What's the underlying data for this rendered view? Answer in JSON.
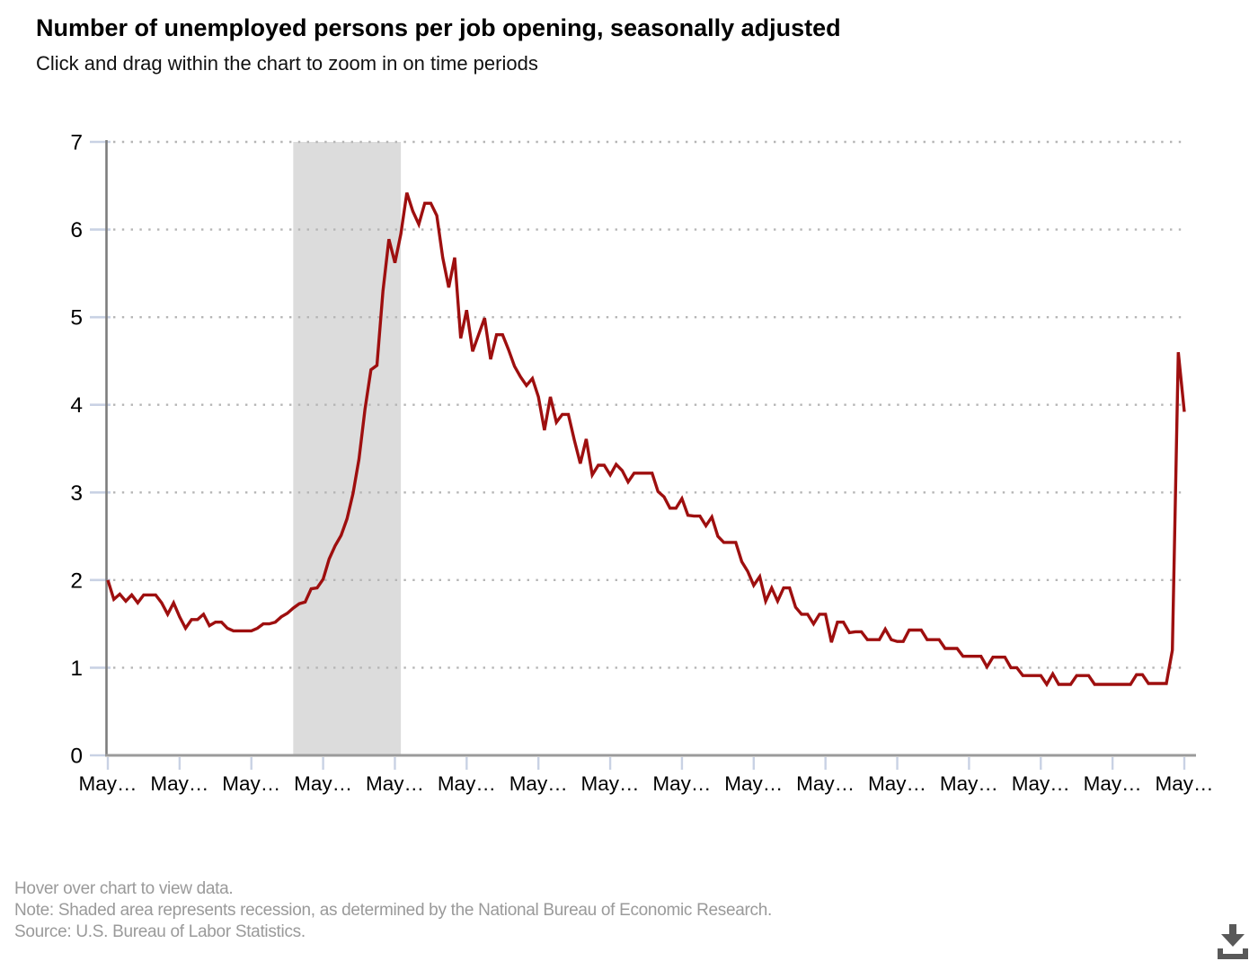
{
  "header": {
    "title": "Number of unemployed persons per job opening, seasonally adjusted",
    "subtitle": "Click and drag within the chart to zoom in on time periods"
  },
  "chart_data": {
    "type": "line",
    "title": "Number of unemployed persons per job opening, seasonally adjusted",
    "xlabel": "",
    "ylabel": "",
    "ylim": [
      0,
      7
    ],
    "y_ticks": [
      0,
      1,
      2,
      3,
      4,
      5,
      6,
      7
    ],
    "grid": "dotted-horizontal",
    "legend": "none",
    "x_tick_labels": [
      "May…",
      "May…",
      "May…",
      "May…",
      "May…",
      "May…",
      "May…",
      "May…",
      "May…",
      "May…",
      "May…",
      "May…",
      "May…",
      "May…",
      "May…",
      "May…"
    ],
    "points_per_tick_interval": 12,
    "series": [
      {
        "name": "Unemployed persons per job opening",
        "color": "#9e0f0f",
        "values": [
          2.0,
          1.78,
          1.84,
          1.76,
          1.83,
          1.74,
          1.83,
          1.83,
          1.83,
          1.74,
          1.61,
          1.74,
          1.58,
          1.45,
          1.55,
          1.55,
          1.61,
          1.48,
          1.52,
          1.52,
          1.45,
          1.42,
          1.42,
          1.42,
          1.42,
          1.45,
          1.5,
          1.5,
          1.52,
          1.58,
          1.62,
          1.68,
          1.73,
          1.75,
          1.9,
          1.91,
          2.01,
          2.24,
          2.39,
          2.51,
          2.7,
          2.99,
          3.38,
          3.95,
          4.4,
          4.45,
          5.3,
          5.89,
          5.62,
          5.95,
          6.42,
          6.21,
          6.06,
          6.3,
          6.3,
          6.16,
          5.68,
          5.34,
          5.68,
          4.76,
          5.08,
          4.61,
          4.8,
          4.99,
          4.52,
          4.8,
          4.8,
          4.63,
          4.44,
          4.32,
          4.22,
          4.3,
          4.09,
          3.71,
          4.09,
          3.8,
          3.89,
          3.89,
          3.6,
          3.33,
          3.61,
          3.2,
          3.31,
          3.31,
          3.2,
          3.32,
          3.25,
          3.12,
          3.22,
          3.22,
          3.22,
          3.22,
          3.01,
          2.95,
          2.82,
          2.82,
          2.93,
          2.74,
          2.73,
          2.73,
          2.62,
          2.72,
          2.5,
          2.43,
          2.43,
          2.43,
          2.21,
          2.1,
          1.94,
          2.04,
          1.76,
          1.91,
          1.76,
          1.91,
          1.91,
          1.69,
          1.61,
          1.61,
          1.5,
          1.61,
          1.61,
          1.29,
          1.52,
          1.52,
          1.4,
          1.41,
          1.41,
          1.32,
          1.32,
          1.32,
          1.44,
          1.32,
          1.3,
          1.3,
          1.43,
          1.43,
          1.43,
          1.32,
          1.32,
          1.32,
          1.22,
          1.22,
          1.22,
          1.13,
          1.13,
          1.13,
          1.13,
          1.01,
          1.12,
          1.12,
          1.12,
          1.0,
          1.0,
          0.91,
          0.91,
          0.91,
          0.91,
          0.81,
          0.93,
          0.81,
          0.81,
          0.81,
          0.91,
          0.91,
          0.91,
          0.81,
          0.81,
          0.81,
          0.81,
          0.81,
          0.81,
          0.81,
          0.92,
          0.92,
          0.82,
          0.82,
          0.82,
          0.82,
          1.2,
          4.6,
          3.92
        ]
      }
    ],
    "recession_band": {
      "start_point_index": 31,
      "end_point_index": 49,
      "color": "#dcdcdc"
    },
    "colors": {
      "line": "#9e0f0f",
      "grid_dots": "#b5b5b5",
      "y_axis": "#7d7d7d",
      "x_axis": "#9b9b9b",
      "tick_marks": "#c9d2e4",
      "axis_labels": "#000000"
    }
  },
  "footer": {
    "lines": [
      "Hover over chart to view data.",
      "Note: Shaded area represents recession, as determined by the National Bureau of Economic Research.",
      "Source: U.S. Bureau of Labor Statistics."
    ]
  },
  "icons": {
    "download": "download-icon"
  }
}
